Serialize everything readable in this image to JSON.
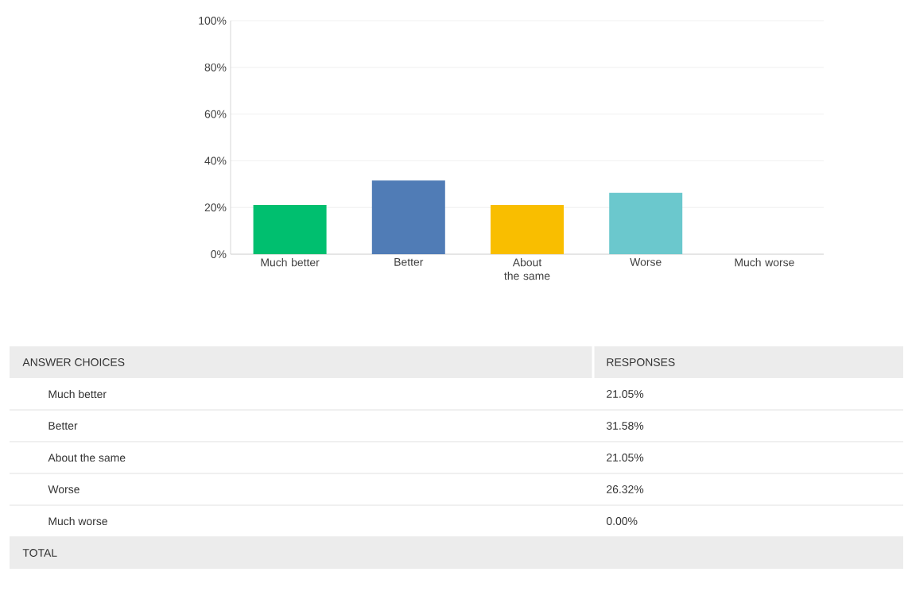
{
  "chart_data": {
    "type": "bar",
    "categories": [
      "Much better",
      "Better",
      "About the same",
      "Worse",
      "Much worse"
    ],
    "values": [
      21.05,
      31.58,
      21.05,
      26.32,
      0.0
    ],
    "colors": [
      "#00bf6f",
      "#507cb6",
      "#f9be00",
      "#6bc8cd",
      "#d25f90"
    ],
    "ylim": [
      0,
      100
    ],
    "yticks": [
      {
        "value": 0,
        "label": "0%"
      },
      {
        "value": 20,
        "label": "20%"
      },
      {
        "value": 40,
        "label": "40%"
      },
      {
        "value": 60,
        "label": "60%"
      },
      {
        "value": 80,
        "label": "80%"
      },
      {
        "value": 100,
        "label": "100%"
      }
    ],
    "grid": "y",
    "annotations": [
      "ANSWER CHOICES",
      "RESPONSES",
      "21.05%",
      "31.58%",
      "21.05%",
      "26.32%",
      "0.00%",
      "TOTAL"
    ]
  }
}
